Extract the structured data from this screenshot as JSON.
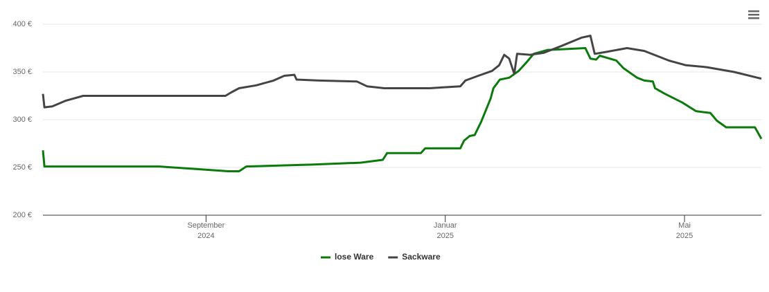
{
  "chart_data": {
    "type": "line",
    "ylim": [
      200,
      400
    ],
    "yticks": [
      {
        "value": 200,
        "label": "200 €"
      },
      {
        "value": 250,
        "label": "250 €"
      },
      {
        "value": 300,
        "label": "300 €"
      },
      {
        "value": 350,
        "label": "350 €"
      },
      {
        "value": 400,
        "label": "400 €"
      }
    ],
    "xlim": [
      2024.44,
      2025.44
    ],
    "xticks": [
      {
        "value": 2024.667,
        "label": "September",
        "sublabel": "2024"
      },
      {
        "value": 2025.0,
        "label": "Januar",
        "sublabel": "2025"
      },
      {
        "value": 2025.333,
        "label": "Mai",
        "sublabel": "2025"
      }
    ],
    "grid": true,
    "series": [
      {
        "name": "lose Ware",
        "color": "#0a7a0a",
        "x": [
          2024.44,
          2024.442,
          2024.602,
          2024.66,
          2024.698,
          2024.713,
          2024.723,
          2024.814,
          2024.882,
          2024.913,
          2024.919,
          2024.966,
          2024.972,
          2025.021,
          2025.026,
          2025.034,
          2025.041,
          2025.05,
          2025.063,
          2025.067,
          2025.076,
          2025.089,
          2025.102,
          2025.113,
          2025.123,
          2025.142,
          2025.195,
          2025.202,
          2025.21,
          2025.215,
          2025.238,
          2025.248,
          2025.267,
          2025.277,
          2025.289,
          2025.292,
          2025.306,
          2025.33,
          2025.349,
          2025.369,
          2025.378,
          2025.391,
          2025.431,
          2025.44
        ],
        "values": [
          268,
          251,
          251,
          248,
          246,
          246,
          251,
          253,
          255,
          258,
          265,
          265,
          270,
          270,
          278,
          283,
          284,
          298,
          322,
          333,
          342,
          344,
          351,
          360,
          369,
          373,
          375,
          364,
          363,
          367,
          362,
          354,
          344,
          341,
          340,
          333,
          327,
          318,
          309,
          307,
          299,
          292,
          292,
          280
        ]
      },
      {
        "name": "Sackware",
        "color": "#444444",
        "x": [
          2024.44,
          2024.442,
          2024.453,
          2024.472,
          2024.496,
          2024.573,
          2024.694,
          2024.703,
          2024.713,
          2024.737,
          2024.761,
          2024.776,
          2024.79,
          2024.793,
          2024.824,
          2024.877,
          2024.891,
          2024.915,
          2024.978,
          2025.021,
          2025.028,
          2025.046,
          2025.065,
          2025.075,
          2025.082,
          2025.089,
          2025.096,
          2025.1,
          2025.118,
          2025.137,
          2025.161,
          2025.19,
          2025.202,
          2025.208,
          2025.224,
          2025.253,
          2025.277,
          2025.311,
          2025.335,
          2025.364,
          2025.402,
          2025.44
        ],
        "values": [
          327,
          313,
          314,
          320,
          325,
          325,
          325,
          329,
          333,
          336,
          341,
          346,
          347,
          342,
          341,
          340,
          335,
          333,
          333,
          335,
          341,
          346,
          351,
          357,
          368,
          364,
          348,
          369,
          368,
          370,
          377,
          386,
          388,
          369,
          371,
          375,
          372,
          362,
          357,
          355,
          350,
          343
        ]
      }
    ]
  }
}
